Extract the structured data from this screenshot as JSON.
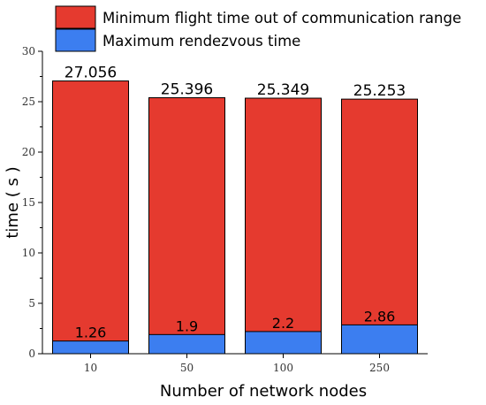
{
  "chart_data": {
    "type": "bar",
    "stacked": "overlapping",
    "categories": [
      "10",
      "50",
      "100",
      "250"
    ],
    "series": [
      {
        "name": "Minimum flight time out of communication range",
        "values": [
          27.056,
          25.396,
          25.349,
          25.253
        ],
        "labels": [
          "27.056",
          "25.396",
          "25.349",
          "25.253"
        ],
        "color": "#E53A2F"
      },
      {
        "name": "Maximum rendezvous time",
        "values": [
          1.26,
          1.9,
          2.2,
          2.86
        ],
        "labels": [
          "1.26",
          "1.9",
          "2.2",
          "2.86"
        ],
        "color": "#3C7EF0"
      }
    ],
    "xlabel": "Number of network nodes",
    "ylabel": "time ( s )",
    "ylim": [
      0,
      30
    ],
    "yticks": [
      "0",
      "5",
      "10",
      "15",
      "20",
      "25",
      "30"
    ],
    "grid": false,
    "legend_position": "top"
  }
}
